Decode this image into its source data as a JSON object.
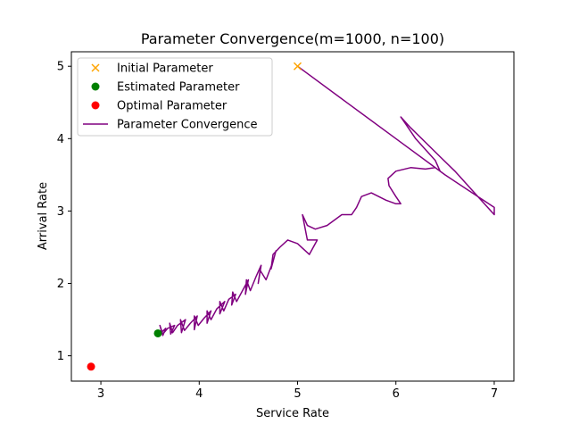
{
  "chart_data": {
    "type": "scatter",
    "title": "Parameter Convergence(m=1000, n=100)",
    "xlabel": "Service Rate",
    "ylabel": "Arrival Rate",
    "xlim": [
      2.7,
      7.2
    ],
    "ylim": [
      0.65,
      5.2
    ],
    "xticks": [
      3,
      4,
      5,
      6,
      7
    ],
    "yticks": [
      1,
      2,
      3,
      4,
      5
    ],
    "grid": false,
    "legend_position": "top-left",
    "legend": [
      {
        "key": "initial",
        "label": "Initial Parameter",
        "marker": "x",
        "color": "#ffa500"
      },
      {
        "key": "estimated",
        "label": "Estimated Parameter",
        "marker": "circle",
        "color": "#008000"
      },
      {
        "key": "optimal",
        "label": "Optimal Parameter",
        "marker": "circle",
        "color": "#ff0000"
      },
      {
        "key": "path",
        "label": "Parameter Convergence",
        "marker": "line",
        "color": "#800080"
      }
    ],
    "points": {
      "initial": {
        "x": 5.0,
        "y": 5.0
      },
      "estimated": {
        "x": 3.58,
        "y": 1.31
      },
      "optimal": {
        "x": 2.9,
        "y": 0.85
      }
    },
    "path": {
      "name": "Parameter Convergence",
      "color": "#800080",
      "x": [
        5.0,
        5.5,
        6.0,
        6.5,
        7.0,
        7.0,
        6.8,
        6.6,
        6.45,
        6.3,
        6.15,
        6.05,
        6.1,
        6.2,
        6.3,
        6.4,
        6.45,
        6.4,
        6.3,
        6.15,
        6.0,
        5.92,
        5.93,
        6.0,
        6.05,
        6.0,
        5.9,
        5.75,
        5.65,
        5.6,
        5.55,
        5.45,
        5.3,
        5.18,
        5.1,
        5.05,
        5.1,
        5.2,
        5.12,
        5.0,
        4.9,
        4.82,
        4.75,
        4.73,
        4.78,
        4.75,
        4.68,
        4.62,
        4.6,
        4.63,
        4.58,
        4.52,
        4.48,
        4.47,
        4.5,
        4.44,
        4.38,
        4.34,
        4.33,
        4.37,
        4.3,
        4.25,
        4.21,
        4.21,
        4.26,
        4.18,
        4.12,
        4.08,
        4.08,
        4.12,
        4.05,
        3.99,
        3.95,
        3.95,
        3.98,
        3.91,
        3.85,
        3.81,
        3.82,
        3.86,
        3.78,
        3.73,
        3.7,
        3.71,
        3.75,
        3.68,
        3.63,
        3.6,
        3.63,
        3.66,
        3.62,
        3.58
      ],
      "y": [
        5.0,
        4.5,
        4.0,
        3.5,
        3.05,
        2.95,
        3.25,
        3.55,
        3.75,
        3.95,
        4.15,
        4.3,
        4.2,
        4.0,
        3.85,
        3.7,
        3.55,
        3.6,
        3.58,
        3.6,
        3.55,
        3.45,
        3.35,
        3.2,
        3.1,
        3.1,
        3.15,
        3.25,
        3.2,
        3.05,
        2.95,
        2.95,
        2.8,
        2.75,
        2.8,
        2.95,
        2.6,
        2.6,
        2.4,
        2.55,
        2.6,
        2.5,
        2.4,
        2.2,
        2.45,
        2.3,
        2.05,
        2.18,
        2.0,
        2.25,
        2.1,
        1.9,
        2.05,
        1.85,
        2.05,
        1.9,
        1.75,
        1.88,
        1.7,
        1.85,
        1.78,
        1.62,
        1.75,
        1.58,
        1.75,
        1.65,
        1.5,
        1.62,
        1.45,
        1.62,
        1.52,
        1.42,
        1.55,
        1.36,
        1.55,
        1.45,
        1.35,
        1.5,
        1.32,
        1.5,
        1.42,
        1.32,
        1.45,
        1.3,
        1.42,
        1.38,
        1.3,
        1.42,
        1.28,
        1.38,
        1.33,
        1.31
      ]
    }
  }
}
